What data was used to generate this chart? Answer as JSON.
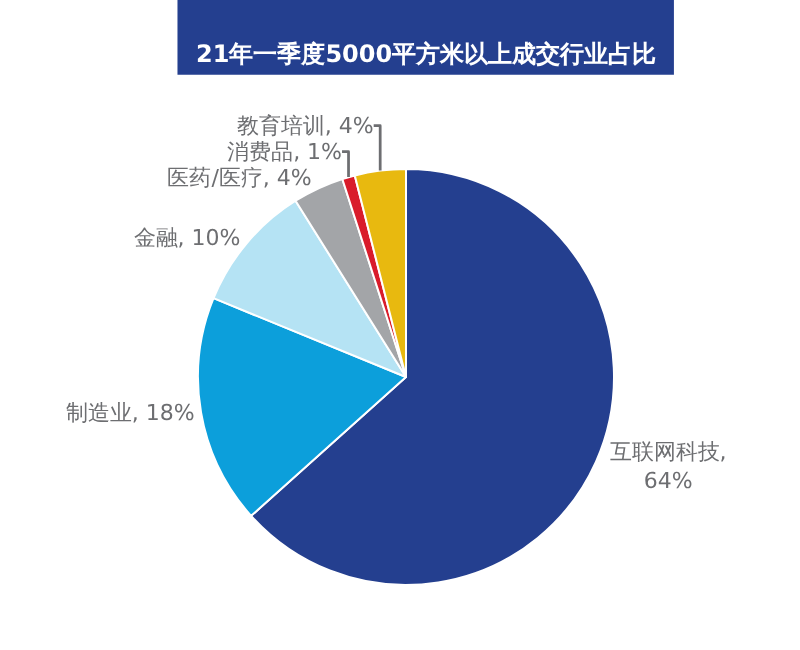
{
  "chart_data": {
    "type": "pie",
    "title": "21年一季度5000平方米以上成交行业占比",
    "categories": [
      "互联网科技",
      "制造业",
      "金融",
      "医药/医疗",
      "消费品",
      "教育培训"
    ],
    "values": [
      64,
      18,
      10,
      4,
      1,
      4
    ],
    "colors": [
      "#243f8f",
      "#0c9fdb",
      "#b5e3f4",
      "#a3a5a8",
      "#d91c2b",
      "#e8b90f"
    ],
    "value_labels": [
      ",\n64%",
      ", 18%",
      ", 10%",
      ", 4%",
      ", 1%",
      ", 4%"
    ],
    "legend": false
  }
}
